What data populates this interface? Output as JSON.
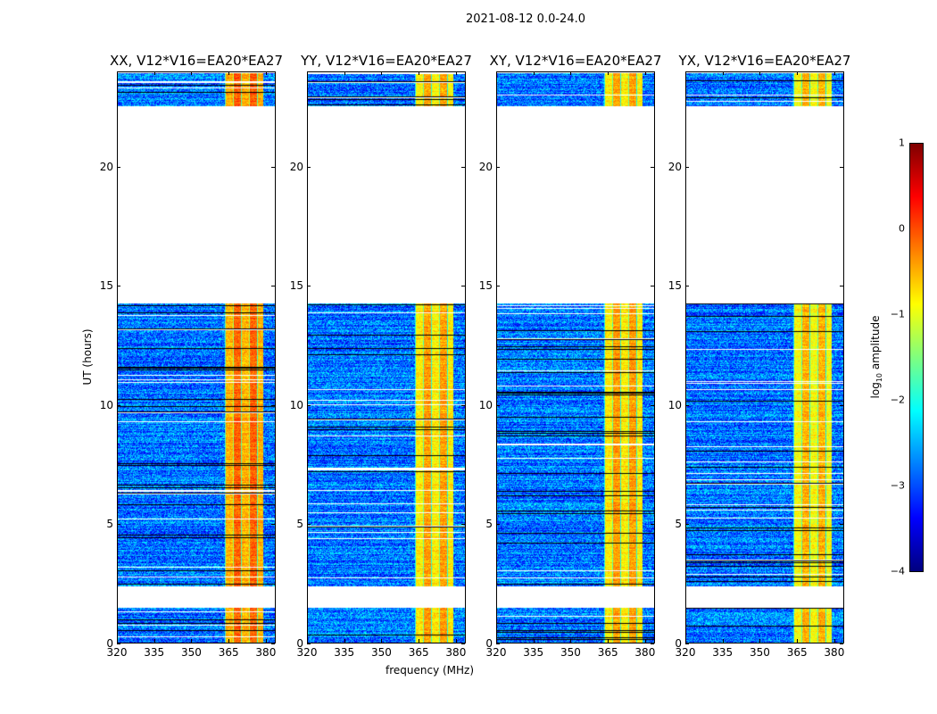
{
  "chart_data": {
    "type": "heatmap",
    "title": "2021-08-12 0.0-24.0",
    "xlabel": "frequency (MHz)",
    "ylabel": "UT (hours)",
    "xlim": [
      320,
      384
    ],
    "ylim": [
      0,
      24
    ],
    "xticks": [
      "320",
      "335",
      "350",
      "365",
      "380"
    ],
    "xtick_values": [
      320,
      335,
      350,
      365,
      380
    ],
    "yticks": [
      "0",
      "5",
      "10",
      "15",
      "20"
    ],
    "ytick_values": [
      0,
      5,
      10,
      15,
      20
    ],
    "panels": [
      {
        "title": "XX, V12*V16=EA20*EA27",
        "band_level": -0.3
      },
      {
        "title": "YY, V12*V16=EA20*EA27",
        "band_level": -0.6
      },
      {
        "title": "XY, V12*V16=EA20*EA27",
        "band_level": -0.6
      },
      {
        "title": "YX, V12*V16=EA20*EA27",
        "band_level": -0.7
      }
    ],
    "data_time_ranges_hours": [
      [
        0,
        1.5
      ],
      [
        2.4,
        14.3
      ],
      [
        22.6,
        24
      ]
    ],
    "rfi_band_mhz": [
      363.5,
      379
    ],
    "background_level": -2.8,
    "colorbar": {
      "label": "log10 amplitude",
      "label_base": "log",
      "label_sub": "10",
      "label_rest": " amplitude",
      "range": [
        -4,
        1
      ],
      "ticks": [
        "1",
        "0",
        "−1",
        "−2",
        "−3",
        "−4"
      ],
      "tick_values": [
        1,
        0,
        -1,
        -2,
        -3,
        -4
      ],
      "colormap": "jet"
    }
  }
}
